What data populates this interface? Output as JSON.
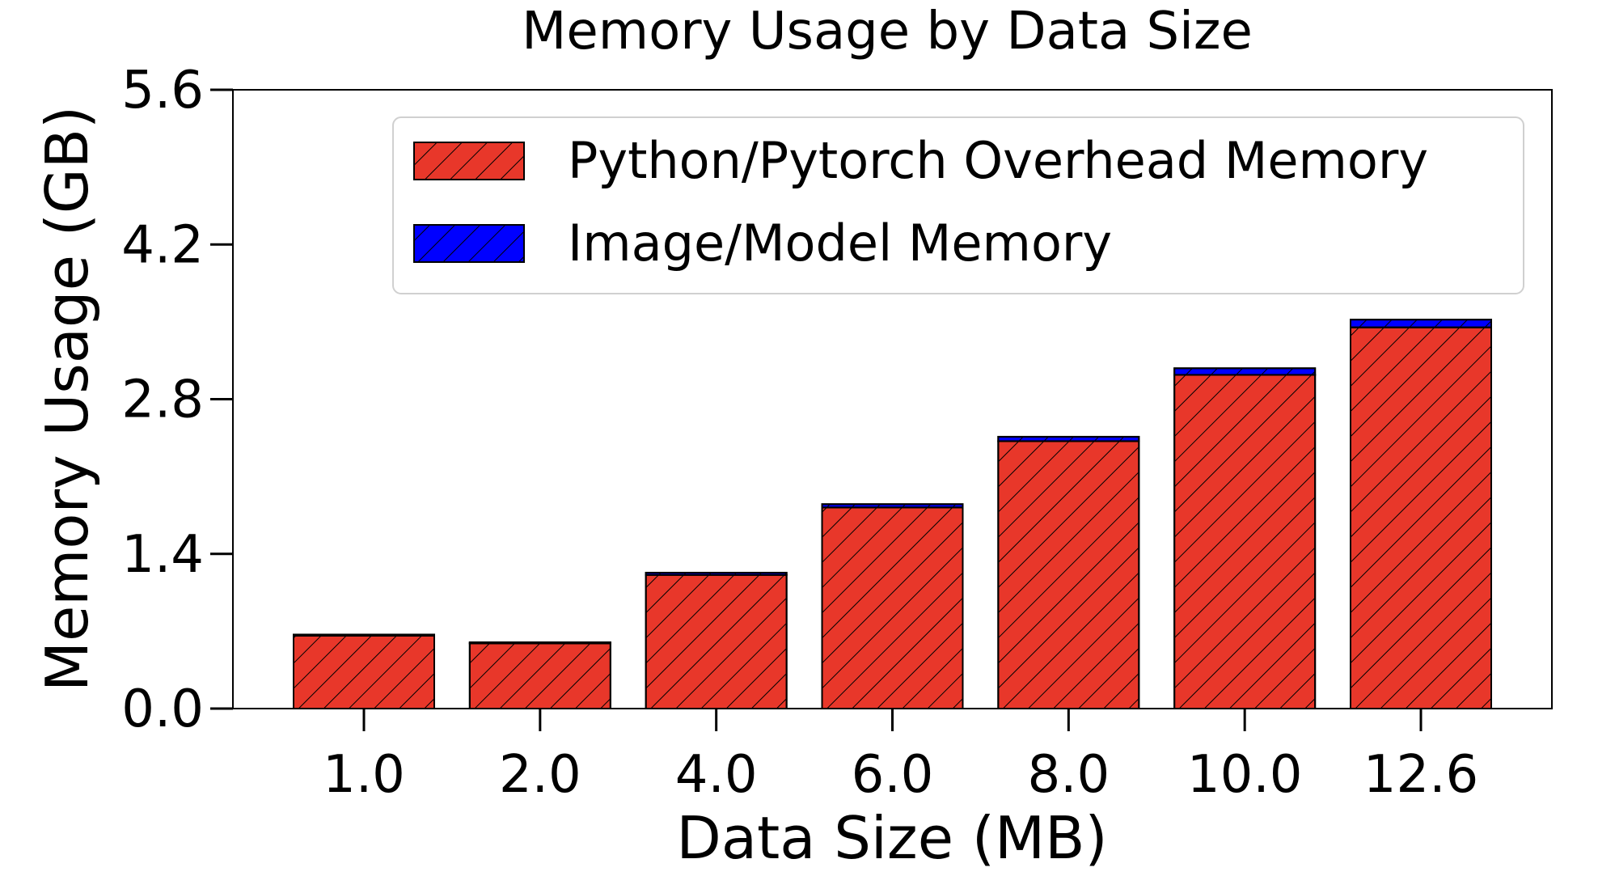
{
  "chart_data": {
    "type": "bar",
    "stacked": true,
    "title": "Memory Usage by Data Size",
    "xlabel": "Data Size (MB)",
    "ylabel": "Memory Usage (GB)",
    "categories": [
      "1.0",
      "2.0",
      "4.0",
      "6.0",
      "8.0",
      "10.0",
      "12.6"
    ],
    "yticks": [
      "0.0",
      "1.4",
      "2.8",
      "4.2",
      "5.6"
    ],
    "ylim": [
      0,
      5.6
    ],
    "grid": false,
    "legend_position": "top-right",
    "hatch": "diagonal",
    "series": [
      {
        "name": "Python/Pytorch Overhead Memory",
        "color": "#e8372a",
        "values": [
          0.66,
          0.59,
          1.21,
          1.82,
          2.42,
          3.02,
          3.45
        ]
      },
      {
        "name": "Image/Model Memory",
        "color": "#0000ff",
        "values": [
          0.01,
          0.01,
          0.02,
          0.03,
          0.04,
          0.06,
          0.07
        ]
      }
    ]
  }
}
